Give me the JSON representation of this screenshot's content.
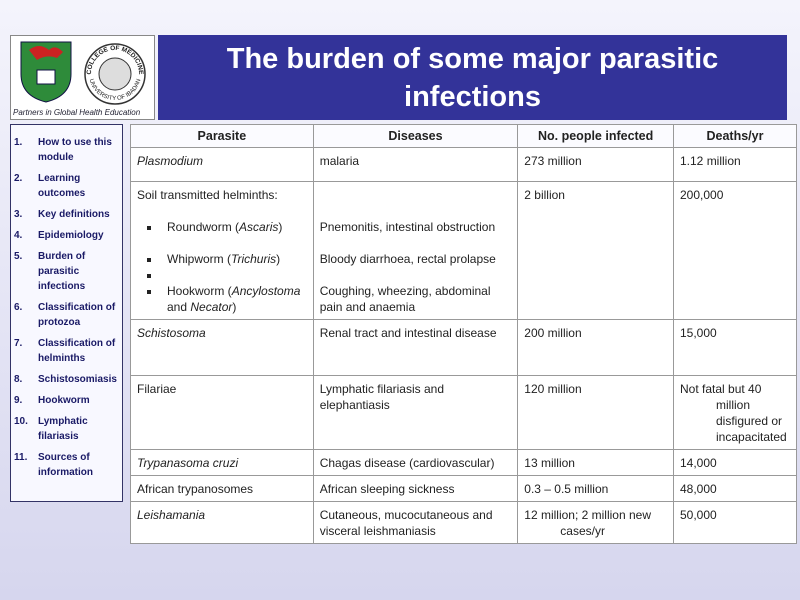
{
  "header": {
    "title": "The burden of some major parasitic infections",
    "logo_caption": "Partners in Global Health Education",
    "seal_top": "COLLEGE OF MEDICINE",
    "seal_bottom": "UNIVERSITY OF IBADAN"
  },
  "nav": {
    "items": [
      {
        "number": "1.",
        "label": "How to use this module"
      },
      {
        "number": "2.",
        "label": "Learning outcomes"
      },
      {
        "number": "3.",
        "label": "Key definitions"
      },
      {
        "number": "4.",
        "label": "Epidemiology"
      },
      {
        "number": "5.",
        "label": "Burden of parasitic infections"
      },
      {
        "number": "6.",
        "label": "Classification of protozoa"
      },
      {
        "number": "7.",
        "label": "Classification of helminths"
      },
      {
        "number": "8.",
        "label": "Schistosomiasis"
      },
      {
        "number": "9.",
        "label": "Hookworm"
      },
      {
        "number": "10.",
        "label": "Lymphatic filariasis"
      },
      {
        "number": "11.",
        "label": "Sources of information"
      }
    ]
  },
  "table": {
    "columns": [
      "Parasite",
      "Diseases",
      "No. people infected",
      "Deaths/yr"
    ],
    "rows": [
      [
        "Plasmodium",
        "malaria",
        "273 million",
        "1.12 million"
      ],
      [
        {
          "heading": "Soil transmitted helminths:",
          "items": [
            [
              "Roundworm (",
              "Ascaris",
              ")"
            ],
            [
              "Whipworm (",
              "Trichuris",
              ")"
            ],
            [
              "Hookworm (",
              "Ancylostoma",
              " and ",
              "Necator",
              ")"
            ]
          ]
        },
        [
          "Pnemonitis, intestinal obstruction",
          "Bloody diarrhoea, rectal prolapse",
          "Coughing, wheezing, abdominal pain and anaemia"
        ],
        "2 billion",
        "200,000"
      ],
      [
        "Schistosoma",
        "Renal tract and intestinal disease",
        "200 million",
        "15,000"
      ],
      [
        "Filariae",
        "Lymphatic filariasis and elephantiasis",
        "120 million",
        "Not fatal but 40 million disfigured or incapacitated"
      ],
      [
        "Trypanasoma cruzi",
        "Chagas disease (cardiovascular)",
        "13 million",
        "14,000"
      ],
      [
        "African trypanosomes",
        "African sleeping sickness",
        "0.3 – 0.5 million",
        "48,000"
      ],
      [
        "Leishamania",
        "Cutaneous, mucocutaneous and visceral leishmaniasis",
        "12 million; 2 million new cases/yr",
        "50,000"
      ]
    ]
  }
}
